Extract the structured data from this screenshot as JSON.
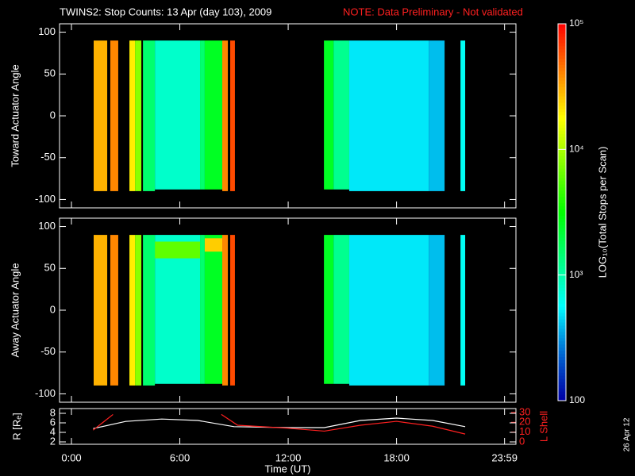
{
  "title": "TWINS2: Stop Counts: 13 Apr (day 103), 2009",
  "note": "NOTE: Data Preliminary - Not validated",
  "date_stamp": "26 Apr 12",
  "colorbar": {
    "label": "LOG₁₀(Total Stops per Scan)",
    "colormap": "rainbow",
    "log": true,
    "clim": [
      100,
      100000
    ],
    "ticks": [
      {
        "value": 100000,
        "label": "10⁵"
      },
      {
        "value": 10000,
        "label": "10⁴"
      },
      {
        "value": 1000,
        "label": "10³"
      },
      100
    ]
  },
  "chart_data": [
    {
      "type": "heatmap",
      "ylabel": "Toward Actuator Angle",
      "xlim": [
        -0.66,
        24.61
      ],
      "ylim": [
        -110,
        110
      ],
      "yticks": [
        -100,
        -50,
        0,
        50,
        100
      ],
      "bands": [
        {
          "start": 1.23,
          "end": 1.98,
          "low": -90,
          "high": 90,
          "value": 30000
        },
        {
          "start": 2.15,
          "end": 2.59,
          "low": -90,
          "high": 90,
          "value": 40000
        },
        {
          "start": 3.21,
          "end": 3.52,
          "low": -90,
          "high": 90,
          "value": 20000
        },
        {
          "start": 3.52,
          "end": 3.87,
          "low": -90,
          "high": 90,
          "value": 8000
        },
        {
          "start": 3.96,
          "end": 4.62,
          "low": -90,
          "high": 90,
          "value": 1500
        },
        {
          "start": 4.62,
          "end": 7.12,
          "low": -88,
          "high": 90,
          "value": 800
        },
        {
          "start": 7.12,
          "end": 7.38,
          "low": -88,
          "high": 90,
          "value": 1500
        },
        {
          "start": 7.38,
          "end": 8.35,
          "low": -88,
          "high": 90,
          "value": 2500
        },
        {
          "start": 8.35,
          "end": 8.66,
          "low": -90,
          "high": 90,
          "value": 40000
        },
        {
          "start": 8.79,
          "end": 9.05,
          "low": -90,
          "high": 90,
          "value": 60000
        },
        {
          "start": 13.98,
          "end": 14.51,
          "low": -88,
          "high": 90,
          "value": 2500
        },
        {
          "start": 14.51,
          "end": 15.38,
          "low": -88,
          "high": 90,
          "value": 1200
        },
        {
          "start": 15.38,
          "end": 19.78,
          "low": -90,
          "high": 90,
          "value": 500
        },
        {
          "start": 19.78,
          "end": 20.66,
          "low": -90,
          "high": 90,
          "value": 400
        },
        {
          "start": 21.54,
          "end": 21.8,
          "low": -90,
          "high": 90,
          "value": 600
        }
      ]
    },
    {
      "type": "heatmap",
      "ylabel": "Away Actuator Angle",
      "xlim": [
        -0.66,
        24.61
      ],
      "ylim": [
        -110,
        110
      ],
      "yticks": [
        -100,
        -50,
        0,
        50,
        100
      ],
      "bands": [
        {
          "start": 1.23,
          "end": 1.98,
          "low": -90,
          "high": 90,
          "value": 30000
        },
        {
          "start": 2.15,
          "end": 2.59,
          "low": -90,
          "high": 90,
          "value": 40000
        },
        {
          "start": 3.21,
          "end": 3.52,
          "low": -90,
          "high": 90,
          "value": 20000
        },
        {
          "start": 3.52,
          "end": 3.87,
          "low": -90,
          "high": 90,
          "value": 8000
        },
        {
          "start": 3.96,
          "end": 4.62,
          "low": -90,
          "high": 90,
          "value": 1500
        },
        {
          "start": 4.62,
          "end": 7.12,
          "low": -88,
          "high": 90,
          "value": 800
        },
        {
          "start": 4.62,
          "end": 7.12,
          "low": 62,
          "high": 82,
          "value": 6000
        },
        {
          "start": 7.12,
          "end": 7.38,
          "low": -88,
          "high": 90,
          "value": 1500
        },
        {
          "start": 7.38,
          "end": 8.35,
          "low": -88,
          "high": 90,
          "value": 2500
        },
        {
          "start": 7.38,
          "end": 8.35,
          "low": 70,
          "high": 86,
          "value": 25000
        },
        {
          "start": 8.35,
          "end": 8.66,
          "low": -90,
          "high": 90,
          "value": 40000
        },
        {
          "start": 8.79,
          "end": 9.05,
          "low": -90,
          "high": 90,
          "value": 60000
        },
        {
          "start": 13.98,
          "end": 14.51,
          "low": -88,
          "high": 90,
          "value": 2500
        },
        {
          "start": 14.51,
          "end": 15.38,
          "low": -88,
          "high": 90,
          "value": 1200
        },
        {
          "start": 15.38,
          "end": 19.78,
          "low": -90,
          "high": 90,
          "value": 500
        },
        {
          "start": 19.78,
          "end": 20.66,
          "low": -90,
          "high": 90,
          "value": 400
        },
        {
          "start": 21.54,
          "end": 21.8,
          "low": -90,
          "high": 90,
          "value": 600
        }
      ]
    },
    {
      "type": "line",
      "xlabel": "Time (UT)",
      "ylabel": "R [Rₑ]",
      "y2label": "L Shell",
      "xlim": [
        -0.66,
        24.61
      ],
      "ylim": [
        1.5,
        9
      ],
      "y2lim": [
        -2.4,
        34
      ],
      "xticks": [
        {
          "value": 0,
          "label": "0:00"
        },
        {
          "value": 6,
          "label": "6:00"
        },
        {
          "value": 12,
          "label": "12:00"
        },
        {
          "value": 18,
          "label": "18:00"
        },
        {
          "value": 23.98,
          "label": "23:59"
        }
      ],
      "yticks": [
        2,
        4,
        6,
        8
      ],
      "y2ticks": [
        0,
        10,
        20,
        30
      ],
      "series": [
        {
          "name": "R",
          "color": "#ffffff",
          "x": [
            1.2,
            3,
            5,
            7,
            9,
            12,
            14,
            16,
            18,
            20,
            21.8
          ],
          "values": [
            4.8,
            6.3,
            6.8,
            6.5,
            5.2,
            5,
            5,
            6.5,
            7,
            6.5,
            5.2
          ]
        },
        {
          "name": "L Shell",
          "color": "#ff2020",
          "axis": "y2",
          "x": [
            1.2,
            2.3,
            3,
            7.6,
            8.3,
            9.2,
            12,
            14,
            16,
            18,
            20,
            21.8
          ],
          "values": [
            12,
            28,
            null,
            null,
            28,
            17,
            14,
            11,
            17,
            21,
            16,
            8
          ]
        }
      ]
    }
  ]
}
